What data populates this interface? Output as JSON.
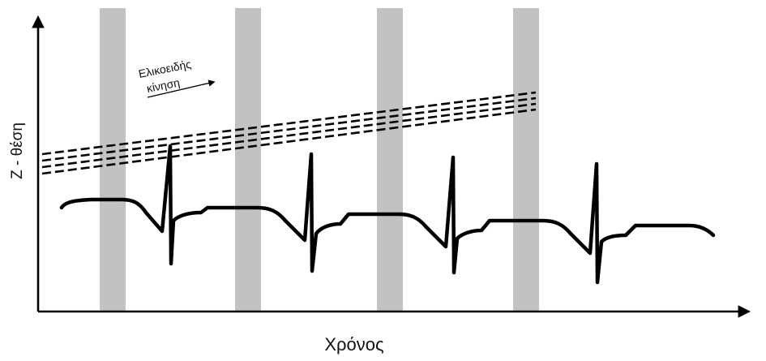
{
  "axes": {
    "x_label": "Χρόνος",
    "y_label": "Z - θέση"
  },
  "annotation": {
    "line1": "Ελικοειδής",
    "line2": "κίνηση"
  },
  "colors": {
    "band": "#c2c2c2",
    "ink": "#000000"
  }
}
